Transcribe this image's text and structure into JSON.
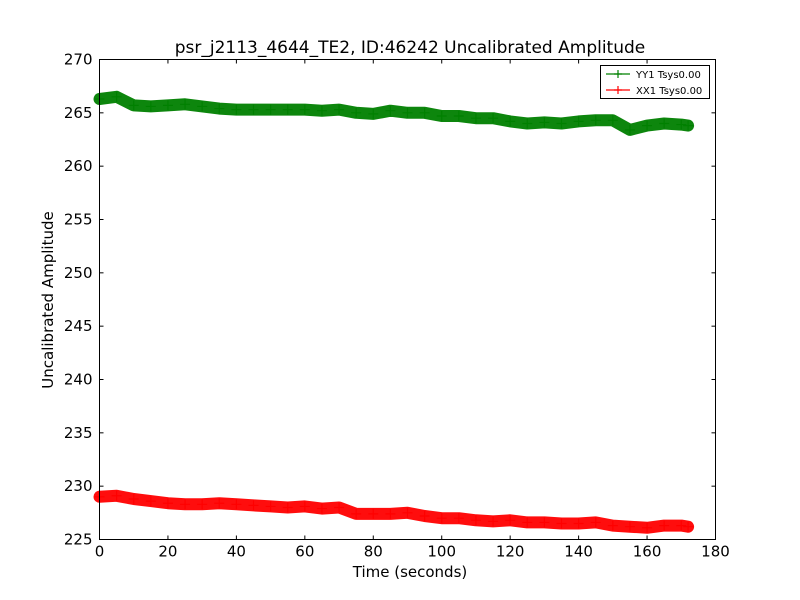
{
  "chart_data": {
    "type": "scatter",
    "title": "psr_j2113_4644_TE2, ID:46242 Uncalibrated Amplitude",
    "xlabel": "Time (seconds)",
    "ylabel": "Uncalibrated Amplitude",
    "xlim": [
      0,
      180
    ],
    "ylim": [
      225,
      270
    ],
    "xticks": [
      0,
      20,
      40,
      60,
      80,
      100,
      120,
      140,
      160,
      180
    ],
    "yticks": [
      225,
      230,
      235,
      240,
      245,
      250,
      255,
      260,
      265,
      270
    ],
    "grid": false,
    "legend_position": "top-right",
    "marker": "+",
    "series": [
      {
        "name": "YY1 Tsys0.00",
        "color": "#008000",
        "x": [
          0,
          5,
          10,
          15,
          20,
          25,
          30,
          35,
          40,
          45,
          50,
          55,
          60,
          65,
          70,
          75,
          80,
          85,
          90,
          95,
          100,
          105,
          110,
          115,
          120,
          125,
          130,
          135,
          140,
          145,
          150,
          155,
          160,
          165,
          170,
          172
        ],
        "y": [
          266.3,
          266.5,
          265.7,
          265.6,
          265.7,
          265.8,
          265.6,
          265.4,
          265.3,
          265.3,
          265.3,
          265.3,
          265.3,
          265.2,
          265.3,
          265.0,
          264.9,
          265.2,
          265.0,
          265.0,
          264.7,
          264.7,
          264.5,
          264.5,
          264.2,
          264.0,
          264.1,
          264.0,
          264.2,
          264.3,
          264.3,
          263.4,
          263.8,
          264.0,
          263.9,
          263.8
        ]
      },
      {
        "name": "XX1 Tsys0.00",
        "color": "#ff0000",
        "x": [
          0,
          5,
          10,
          15,
          20,
          25,
          30,
          35,
          40,
          45,
          50,
          55,
          60,
          65,
          70,
          75,
          80,
          85,
          90,
          95,
          100,
          105,
          110,
          115,
          120,
          125,
          130,
          135,
          140,
          145,
          150,
          155,
          160,
          165,
          170,
          172
        ],
        "y": [
          229.0,
          229.1,
          228.8,
          228.6,
          228.4,
          228.3,
          228.3,
          228.4,
          228.3,
          228.2,
          228.1,
          228.0,
          228.1,
          227.9,
          228.0,
          227.4,
          227.4,
          227.4,
          227.5,
          227.2,
          227.0,
          227.0,
          226.8,
          226.7,
          226.8,
          226.6,
          226.6,
          226.5,
          226.5,
          226.6,
          226.3,
          226.2,
          226.1,
          226.3,
          226.3,
          226.2
        ]
      }
    ]
  }
}
